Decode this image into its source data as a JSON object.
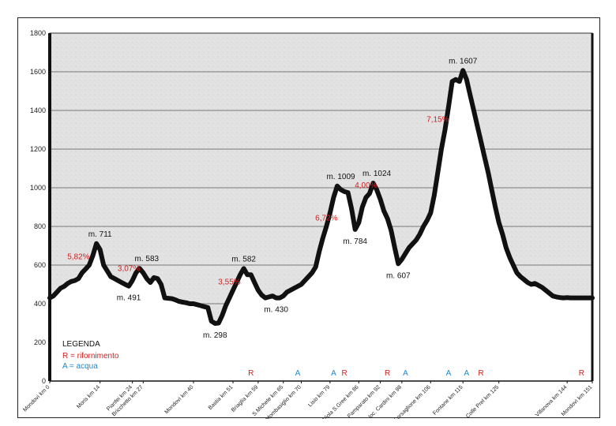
{
  "chart_data": {
    "type": "area",
    "title": "",
    "xlabel": "",
    "ylabel": "",
    "ylim": [
      0,
      1800
    ],
    "xlim": [
      0,
      151
    ],
    "yticks": [
      0,
      200,
      400,
      600,
      800,
      1000,
      1200,
      1400,
      1600,
      1800
    ],
    "grid": "horizontal",
    "colors": {
      "profile": "#111111",
      "plot_bg": "#e4e4e4",
      "fill": "#ffffff",
      "red": "#d42020",
      "blue": "#1e88d0"
    },
    "profile": {
      "x": [
        0,
        1,
        2,
        3,
        4,
        5,
        6,
        7,
        8,
        9,
        10,
        11,
        12,
        13,
        14,
        15,
        16,
        17,
        18,
        19,
        20,
        21,
        22,
        23,
        24,
        25,
        26,
        27,
        28,
        29,
        30,
        31,
        32,
        33,
        34,
        35,
        36,
        37,
        38,
        39,
        40,
        41,
        42,
        43,
        44,
        45,
        46,
        47,
        48,
        49,
        50,
        51,
        52,
        53,
        54,
        55,
        56,
        57,
        58,
        59,
        60,
        61,
        62,
        63,
        64,
        65,
        66,
        67,
        68,
        69,
        70,
        71,
        72,
        73,
        74,
        75,
        76,
        77,
        78,
        79,
        80,
        81,
        82,
        83,
        84,
        85,
        86,
        87,
        88,
        89,
        90,
        91,
        92,
        93,
        94,
        95,
        96,
        97,
        98,
        99,
        100,
        101,
        102,
        103,
        104,
        105,
        106,
        107,
        108,
        109,
        110,
        111,
        112,
        113,
        114,
        115,
        116,
        117,
        118,
        119,
        120,
        121,
        122,
        123,
        124,
        125,
        126,
        127,
        128,
        129,
        130,
        131,
        132,
        133,
        134,
        135,
        136,
        137,
        138,
        139,
        140,
        141,
        142,
        143,
        144,
        145,
        146,
        147,
        148,
        149,
        150,
        151
      ],
      "y": [
        430,
        440,
        460,
        480,
        490,
        505,
        515,
        520,
        530,
        560,
        580,
        600,
        650,
        711,
        680,
        600,
        570,
        540,
        530,
        520,
        510,
        500,
        491,
        520,
        560,
        583,
        560,
        530,
        510,
        535,
        530,
        500,
        430,
        428,
        426,
        420,
        412,
        408,
        405,
        400,
        400,
        395,
        390,
        385,
        380,
        310,
        298,
        300,
        340,
        390,
        430,
        470,
        510,
        550,
        582,
        550,
        550,
        510,
        470,
        445,
        430,
        435,
        440,
        430,
        430,
        440,
        460,
        470,
        480,
        490,
        500,
        520,
        540,
        560,
        590,
        670,
        740,
        800,
        870,
        950,
        1009,
        990,
        980,
        975,
        890,
        784,
        820,
        900,
        950,
        970,
        1024,
        990,
        940,
        880,
        840,
        780,
        690,
        607,
        630,
        660,
        690,
        710,
        730,
        760,
        800,
        830,
        870,
        960,
        1080,
        1200,
        1300,
        1420,
        1550,
        1560,
        1550,
        1607,
        1560,
        1480,
        1400,
        1320,
        1240,
        1160,
        1080,
        990,
        900,
        820,
        760,
        690,
        640,
        600,
        560,
        540,
        525,
        510,
        500,
        505,
        495,
        485,
        470,
        455,
        440,
        435,
        432,
        430,
        432,
        430,
        430,
        430,
        430,
        430,
        430,
        430
      ]
    },
    "peak_labels": [
      {
        "x": 14,
        "y": 711,
        "text": "m. 711",
        "pos": "above"
      },
      {
        "x": 27,
        "y": 583,
        "text": "m. 583",
        "pos": "above"
      },
      {
        "x": 22,
        "y": 491,
        "text": "m. 491",
        "pos": "below"
      },
      {
        "x": 46,
        "y": 298,
        "text": "m. 298",
        "pos": "below"
      },
      {
        "x": 54,
        "y": 582,
        "text": "m. 582",
        "pos": "above"
      },
      {
        "x": 63,
        "y": 430,
        "text": "m. 430",
        "pos": "below"
      },
      {
        "x": 81,
        "y": 1009,
        "text": "m. 1009",
        "pos": "above"
      },
      {
        "x": 85,
        "y": 784,
        "text": "m. 784",
        "pos": "below"
      },
      {
        "x": 91,
        "y": 1024,
        "text": "m. 1024",
        "pos": "above"
      },
      {
        "x": 97,
        "y": 607,
        "text": "m. 607",
        "pos": "below"
      },
      {
        "x": 115,
        "y": 1607,
        "text": "m. 1607",
        "pos": "above"
      }
    ],
    "grade_labels": [
      {
        "x": 8,
        "y": 630,
        "text": "5,82%"
      },
      {
        "x": 22,
        "y": 570,
        "text": "3,07%"
      },
      {
        "x": 50,
        "y": 500,
        "text": "3,55%"
      },
      {
        "x": 77,
        "y": 830,
        "text": "6,72%"
      },
      {
        "x": 88,
        "y": 1000,
        "text": "4,00%"
      },
      {
        "x": 108,
        "y": 1340,
        "text": "7,15%"
      }
    ],
    "x_tick_labels": [
      {
        "x": 0,
        "text": "Mondovì km 0"
      },
      {
        "x": 14,
        "text": "Moris km 14"
      },
      {
        "x": 23,
        "text": "Pianfei km 24"
      },
      {
        "x": 26,
        "text": "Bricchetto km 27"
      },
      {
        "x": 40,
        "text": "Mondovì km 40"
      },
      {
        "x": 51,
        "text": "Bastia km 51"
      },
      {
        "x": 58,
        "text": "Briaglia km 59"
      },
      {
        "x": 65,
        "text": "S.Michele km 65"
      },
      {
        "x": 70,
        "text": "Mombasiglio km 70"
      },
      {
        "x": 78,
        "text": "Lisio km 79"
      },
      {
        "x": 86,
        "text": "Viola S.Gree km 86"
      },
      {
        "x": 92,
        "text": "Pamparato km 92"
      },
      {
        "x": 98,
        "text": "loc. Cardini km 98"
      },
      {
        "x": 106,
        "text": "Corsaglione km 106"
      },
      {
        "x": 115,
        "text": "Fontane km 115"
      },
      {
        "x": 125,
        "text": "Colle Prel km 125"
      },
      {
        "x": 144,
        "text": "Villanova km 144"
      },
      {
        "x": 151,
        "text": "Mondovì km 151"
      }
    ],
    "markers": [
      {
        "x": 56,
        "type": "R"
      },
      {
        "x": 69,
        "type": "A"
      },
      {
        "x": 79,
        "type": "A"
      },
      {
        "x": 82,
        "type": "R"
      },
      {
        "x": 94,
        "type": "R"
      },
      {
        "x": 99,
        "type": "A"
      },
      {
        "x": 111,
        "type": "A"
      },
      {
        "x": 116,
        "type": "A"
      },
      {
        "x": 120,
        "type": "R"
      },
      {
        "x": 148,
        "type": "R"
      }
    ],
    "legend": {
      "title": "LEGENDA",
      "items": [
        {
          "text": "R = rifornimento",
          "color": "#d42020"
        },
        {
          "text": "A = acqua",
          "color": "#1e88d0"
        }
      ]
    }
  }
}
